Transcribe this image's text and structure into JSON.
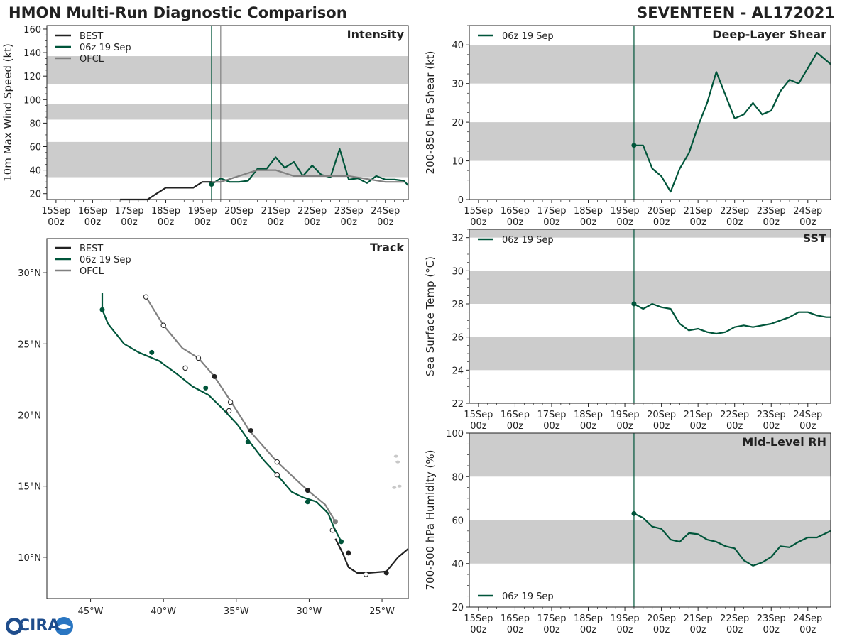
{
  "header": {
    "left_title": "HMON Multi-Run Diagnostic Comparison",
    "right_title": "SEVENTEEN - AL172021"
  },
  "logo": {
    "text": "CIRA"
  },
  "colors": {
    "best": "#222222",
    "run": "#00553a",
    "ofcl": "#808080",
    "band": "#cccccc",
    "track_dot_ofcl": "#ffffff"
  },
  "time_axis": {
    "tick_labels": [
      [
        "15Sep",
        "00z"
      ],
      [
        "16Sep",
        "00z"
      ],
      [
        "17Sep",
        "00z"
      ],
      [
        "18Sep",
        "00z"
      ],
      [
        "19Sep",
        "00z"
      ],
      [
        "20Sep",
        "00z"
      ],
      [
        "21Sep",
        "00z"
      ],
      [
        "22Sep",
        "00z"
      ],
      [
        "23Sep",
        "00z"
      ],
      [
        "24Sep",
        "00z"
      ]
    ]
  },
  "chart_data": [
    {
      "id": "intensity",
      "type": "line",
      "title": "Intensity",
      "ylabel": "10m Max Wind Speed (kt)",
      "xlim": [
        -102,
        135
      ],
      "ylim": [
        15,
        163
      ],
      "yticks": [
        20,
        40,
        60,
        80,
        100,
        120,
        140,
        160
      ],
      "bands": [
        [
          34,
          64
        ],
        [
          83,
          96
        ],
        [
          113,
          137
        ]
      ],
      "vlines": [
        {
          "x": 6,
          "color": "#00553a"
        },
        {
          "x": 12,
          "color": "#808080"
        }
      ],
      "legend": [
        "BEST",
        "06z 19 Sep",
        "OFCL"
      ],
      "series": [
        {
          "name": "BEST",
          "color": "#222222",
          "x": [
            -54,
            -48,
            -42,
            -36,
            -30,
            -24,
            -18,
            -12,
            -6,
            0,
            6
          ],
          "y": [
            15,
            15,
            15,
            15,
            20,
            25,
            25,
            25,
            25,
            30,
            30
          ]
        },
        {
          "name": "06z 19 Sep",
          "color": "#00553a",
          "x": [
            6,
            12,
            18,
            24,
            30,
            36,
            42,
            48,
            54,
            60,
            66,
            72,
            78,
            84,
            90,
            96,
            102,
            108,
            114,
            120,
            126,
            132,
            135
          ],
          "y": [
            28,
            33,
            30,
            30,
            31,
            41,
            41,
            51,
            42,
            47,
            35,
            44,
            36,
            34,
            58,
            32,
            33,
            29,
            35,
            32,
            32,
            31,
            27
          ],
          "marker_first": true
        },
        {
          "name": "OFCL",
          "color": "#808080",
          "x": [
            6,
            12,
            24,
            36,
            48,
            60,
            72,
            96,
            120,
            132
          ],
          "y": [
            30,
            30,
            35,
            40,
            40,
            35,
            35,
            35,
            30,
            30
          ]
        }
      ]
    },
    {
      "id": "shear",
      "type": "line",
      "title": "Deep-Layer Shear",
      "ylabel": "200-850 hPa Shear (kt)",
      "xlim": [
        -102,
        135
      ],
      "ylim": [
        0,
        45
      ],
      "yticks": [
        0,
        10,
        20,
        30,
        40
      ],
      "bands": [
        [
          10,
          20
        ],
        [
          30,
          40
        ]
      ],
      "vlines": [
        {
          "x": 6,
          "color": "#00553a"
        }
      ],
      "legend": [
        "06z 19 Sep"
      ],
      "series": [
        {
          "name": "06z 19 Sep",
          "color": "#00553a",
          "x": [
            6,
            12,
            18,
            24,
            30,
            36,
            42,
            48,
            54,
            60,
            66,
            72,
            78,
            84,
            90,
            96,
            102,
            108,
            114,
            120,
            126,
            132,
            135
          ],
          "y": [
            14,
            14,
            8,
            6,
            2,
            8,
            12,
            19,
            25,
            33,
            27,
            21,
            22,
            25,
            22,
            23,
            28,
            31,
            30,
            34,
            38,
            36,
            35
          ],
          "marker_first": true
        }
      ]
    },
    {
      "id": "sst",
      "type": "line",
      "title": "SST",
      "ylabel": "Sea Surface Temp (°C)",
      "xlim": [
        -102,
        135
      ],
      "ylim": [
        22,
        32.5
      ],
      "yticks": [
        22,
        24,
        26,
        28,
        30,
        32
      ],
      "bands": [
        [
          24,
          26
        ],
        [
          28,
          30
        ],
        [
          32,
          32.5
        ]
      ],
      "vlines": [
        {
          "x": 6,
          "color": "#00553a"
        }
      ],
      "legend": [
        "06z 19 Sep"
      ],
      "series": [
        {
          "name": "06z 19 Sep",
          "color": "#00553a",
          "x": [
            6,
            12,
            18,
            24,
            30,
            36,
            42,
            48,
            54,
            60,
            66,
            72,
            78,
            84,
            90,
            96,
            102,
            108,
            114,
            120,
            126,
            132,
            135
          ],
          "y": [
            28,
            27.7,
            28,
            27.8,
            27.7,
            26.8,
            26.4,
            26.5,
            26.3,
            26.2,
            26.3,
            26.6,
            26.7,
            26.6,
            26.7,
            26.8,
            27,
            27.2,
            27.5,
            27.5,
            27.3,
            27.2,
            27.2
          ],
          "marker_first": true
        }
      ]
    },
    {
      "id": "rh",
      "type": "line",
      "title": "Mid-Level RH",
      "ylabel": "700-500 hPa Humidity (%)",
      "xlim": [
        -102,
        135
      ],
      "ylim": [
        20,
        100
      ],
      "yticks": [
        20,
        40,
        60,
        80,
        100
      ],
      "bands": [
        [
          40,
          60
        ],
        [
          80,
          100
        ]
      ],
      "vlines": [
        {
          "x": 6,
          "color": "#00553a"
        }
      ],
      "legend": [
        "06z 19 Sep"
      ],
      "legend_position": "bottom-left",
      "series": [
        {
          "name": "06z 19 Sep",
          "color": "#00553a",
          "x": [
            6,
            12,
            18,
            24,
            30,
            36,
            42,
            48,
            54,
            60,
            66,
            72,
            78,
            84,
            90,
            96,
            102,
            108,
            114,
            120,
            126,
            132,
            135
          ],
          "y": [
            63,
            61,
            57,
            56,
            51,
            50,
            54,
            53.5,
            51,
            50,
            48,
            47,
            41.5,
            39,
            40.5,
            43,
            48,
            47.5,
            50,
            52,
            52,
            54,
            55
          ],
          "marker_first": true
        }
      ]
    },
    {
      "id": "track",
      "type": "line",
      "title": "Track",
      "xlim": [
        -48,
        -23.2
      ],
      "ylim": [
        7.1,
        32.4
      ],
      "xticks": [
        -45,
        -40,
        -35,
        -30,
        -25
      ],
      "xtick_labels": [
        "45°W",
        "40°W",
        "35°W",
        "30°W",
        "25°W"
      ],
      "yticks": [
        10,
        15,
        20,
        25,
        30
      ],
      "ytick_labels": [
        "10°N",
        "15°N",
        "20°N",
        "25°N",
        "30°N"
      ],
      "legend": [
        "BEST",
        "06z 19 Sep",
        "OFCL"
      ],
      "series": [
        {
          "name": "BEST",
          "color": "#222222",
          "lon": [
            -23.2,
            -23.9,
            -24.7,
            -25.9,
            -26.7,
            -27.3,
            -27.7,
            -28.2
          ],
          "lat": [
            10.6,
            10,
            9,
            8.9,
            8.9,
            9.3,
            10.3,
            11.3
          ],
          "dots_lon": [
            -24.7,
            -27.3
          ],
          "dots_lat": [
            8.9,
            10.3
          ],
          "open_lon": [
            -26.1
          ],
          "open_lat": [
            8.8
          ]
        },
        {
          "name": "06z 19 Sep",
          "color": "#00553a",
          "lon": [
            -27.8,
            -28.3,
            -28.7,
            -29.5,
            -30.4,
            -31.2,
            -32.2,
            -33.1,
            -34,
            -34.9,
            -35.9,
            -36.9,
            -38,
            -39.1,
            -40.3,
            -41.7,
            -42.7,
            -43.8,
            -44.2,
            -44.2
          ],
          "lat": [
            11.1,
            12.1,
            13.1,
            13.9,
            14.2,
            14.6,
            15.8,
            16.8,
            18,
            19.3,
            20.4,
            21.4,
            22,
            22.9,
            23.8,
            24.4,
            25,
            26.4,
            27.4,
            28.6
          ],
          "dots_lon": [
            -27.8,
            -30.1,
            -34.2,
            -37.1,
            -40.8,
            -44.2
          ],
          "dots_lat": [
            11.1,
            13.9,
            18.1,
            21.9,
            24.4,
            27.4
          ]
        },
        {
          "name": "OFCL",
          "color": "#808080",
          "lon": [
            -28.2,
            -28.9,
            -30.1,
            -32.2,
            -34.1,
            -35.4,
            -36.5,
            -37.6,
            -38.7,
            -40,
            -41.2
          ],
          "lat": [
            12.5,
            13.7,
            14.7,
            16.7,
            18.9,
            21,
            22.7,
            24,
            24.7,
            26.3,
            28.3
          ],
          "dots_lon": [
            -28.2
          ],
          "dots_lat": [
            12.5
          ],
          "open_lon": [
            -28.4,
            -32.2,
            -35.5,
            -38.5,
            -40,
            -41.2,
            -37.6,
            -35.4,
            -32.2
          ],
          "open_lat": [
            11.9,
            15.8,
            20.3,
            23.3,
            26.3,
            28.3,
            24,
            20.9,
            16.7
          ],
          "bests_lon": [
            -30.1,
            -34,
            -36.5
          ],
          "bests_lat": [
            14.7,
            18.9,
            22.7
          ]
        }
      ]
    }
  ]
}
